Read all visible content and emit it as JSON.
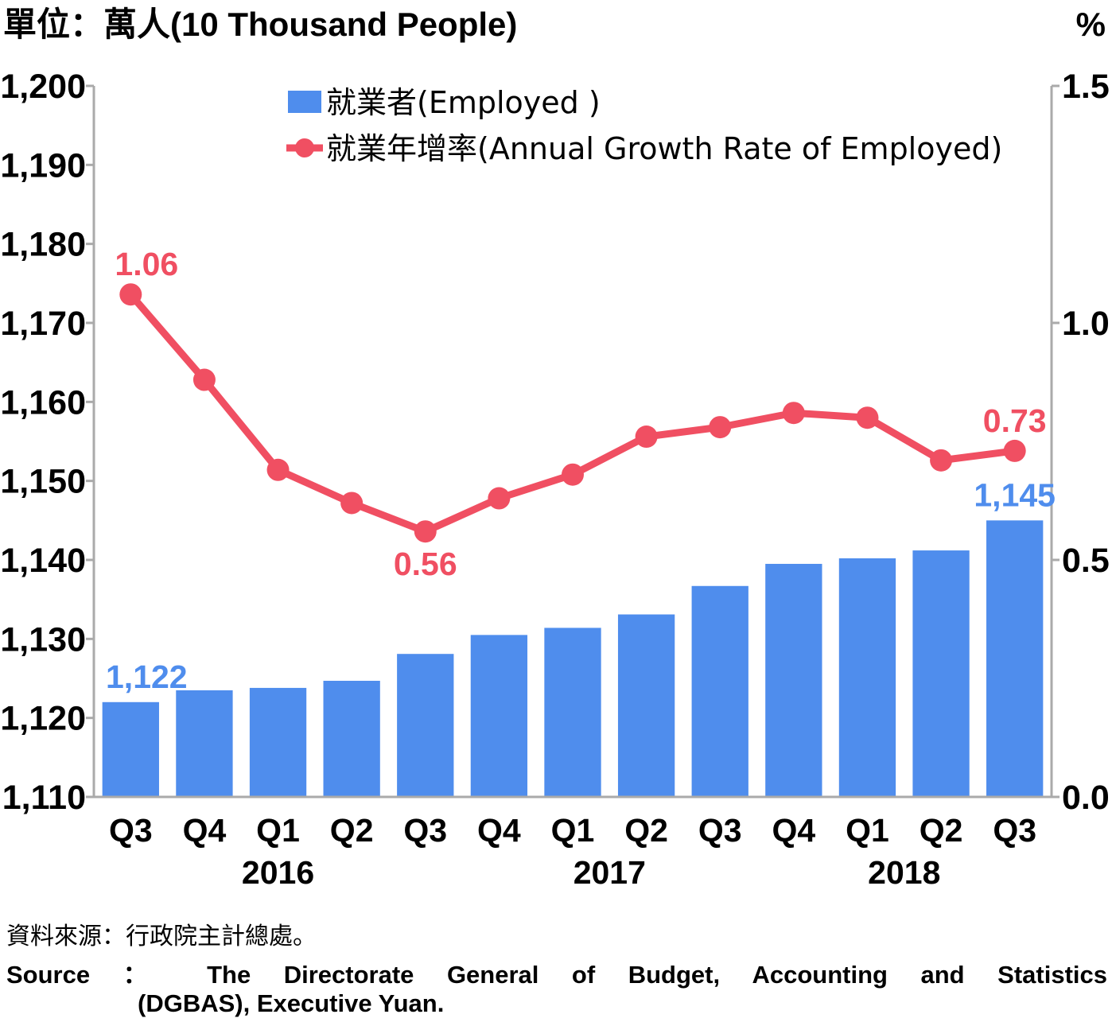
{
  "units": {
    "left": "單位：萬人(10 Thousand People)",
    "right": "%"
  },
  "legend": {
    "bar": "就業者(Employed )",
    "line": "就業年增率(Annual Growth Rate of Employed)"
  },
  "colors": {
    "bar": "#4f8ded",
    "line": "#f04f62",
    "axis": "#aaaaaa"
  },
  "chart_data": {
    "type": "bar+line",
    "categories": [
      "Q3",
      "Q4",
      "Q1",
      "Q2",
      "Q3",
      "Q4",
      "Q1",
      "Q2",
      "Q3",
      "Q4",
      "Q1",
      "Q2",
      "Q3"
    ],
    "years": [
      {
        "label": "2016",
        "from": 0,
        "to": 4
      },
      {
        "label": "2017",
        "from": 5,
        "to": 8
      },
      {
        "label": "2018",
        "from": 9,
        "to": 12
      }
    ],
    "series": [
      {
        "name": "就業者(Employed )",
        "type": "bar",
        "axis": "left",
        "values": [
          1122,
          1123.5,
          1123.8,
          1124.7,
          1128.1,
          1130.5,
          1131.4,
          1133.1,
          1136.7,
          1139.5,
          1140.2,
          1141.2,
          1145
        ]
      },
      {
        "name": "就業年增率(Annual Growth Rate of Employed)",
        "type": "line",
        "axis": "right",
        "values": [
          1.06,
          0.88,
          0.69,
          0.62,
          0.56,
          0.63,
          0.68,
          0.76,
          0.78,
          0.81,
          0.8,
          0.71,
          0.73
        ]
      }
    ],
    "left_axis": {
      "ylim": [
        1110,
        1200
      ],
      "ticks": [
        1110,
        1120,
        1130,
        1140,
        1150,
        1160,
        1170,
        1180,
        1190,
        1200
      ],
      "tick_labels": [
        "1,110",
        "1,120",
        "1,130",
        "1,140",
        "1,150",
        "1,160",
        "1,170",
        "1,180",
        "1,190",
        "1,200"
      ]
    },
    "right_axis": {
      "ylim": [
        0,
        1.5
      ],
      "ticks": [
        0,
        0.5,
        1.0,
        1.5
      ],
      "tick_labels": [
        "0.0",
        "0.5",
        "1.0",
        "1.5"
      ]
    },
    "bar_labels": [
      {
        "index": 0,
        "text": "1,122"
      },
      {
        "index": 12,
        "text": "1,145"
      }
    ],
    "line_labels": [
      {
        "index": 0,
        "text": "1.06",
        "pos": "above"
      },
      {
        "index": 4,
        "text": "0.56",
        "pos": "below"
      },
      {
        "index": 12,
        "text": "0.73",
        "pos": "above"
      }
    ],
    "grid": false,
    "legend_position": "top"
  },
  "footer": {
    "source_zh": "資料來源：行政院主計總處。",
    "source_en_1": "Source ： The Directorate General of Budget, Accounting and Statistics",
    "source_en_2": "(DGBAS), Executive Yuan."
  }
}
